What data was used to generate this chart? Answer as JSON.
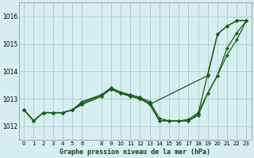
{
  "title": "Graphe pression niveau de la mer (hPa)",
  "background_color": "#d6eef0",
  "grid_color": "#b0cdd0",
  "line_color": "#1a5c1a",
  "xlim": [
    -0.5,
    23.5
  ],
  "ylim": [
    1011.5,
    1016.5
  ],
  "yticks": [
    1012,
    1013,
    1014,
    1015,
    1016
  ],
  "xtick_positions": [
    0,
    1,
    2,
    3,
    4,
    5,
    6,
    8,
    9,
    10,
    11,
    12,
    13,
    14,
    15,
    16,
    17,
    18,
    19,
    20,
    21,
    22,
    23
  ],
  "xtick_labels": [
    "0",
    "1",
    "2",
    "3",
    "4",
    "5",
    "6",
    "8",
    "9",
    "10",
    "11",
    "12",
    "13",
    "14",
    "15",
    "16",
    "17",
    "18",
    "19",
    "20",
    "21",
    "22",
    "23"
  ],
  "series": [
    {
      "x": [
        0,
        1,
        2,
        3,
        4,
        5,
        6,
        8,
        9,
        10,
        11,
        12,
        13,
        19,
        20,
        21,
        22,
        23
      ],
      "y": [
        1012.6,
        1012.2,
        1012.5,
        1012.5,
        1012.5,
        1012.6,
        1012.85,
        1013.15,
        1013.35,
        1013.2,
        1013.15,
        1013.05,
        1012.8,
        1013.85,
        1015.35,
        1015.65,
        1015.85,
        1015.85
      ]
    },
    {
      "x": [
        0,
        1,
        2,
        3,
        4,
        5,
        6,
        8,
        9,
        10,
        11,
        12,
        13,
        14,
        15,
        16,
        17,
        18,
        19,
        20,
        21,
        22,
        23
      ],
      "y": [
        1012.6,
        1012.2,
        1012.5,
        1012.5,
        1012.5,
        1012.6,
        1012.8,
        1013.1,
        1013.35,
        1013.2,
        1013.1,
        1013.0,
        1012.85,
        1012.2,
        1012.2,
        1012.2,
        1012.2,
        1012.4,
        1013.2,
        1013.85,
        1014.85,
        1015.4,
        1015.85
      ]
    },
    {
      "x": [
        0,
        1,
        2,
        3,
        4,
        5,
        6,
        8,
        9,
        10,
        11,
        12,
        13,
        14,
        15,
        16,
        17,
        18,
        19,
        20,
        21,
        22,
        23
      ],
      "y": [
        1012.6,
        1012.2,
        1012.5,
        1012.5,
        1012.5,
        1012.6,
        1012.9,
        1013.15,
        1013.4,
        1013.25,
        1013.15,
        1013.05,
        1012.9,
        1012.3,
        1012.2,
        1012.2,
        1012.25,
        1012.5,
        1013.2,
        1013.85,
        1014.6,
        1015.15,
        1015.85
      ]
    },
    {
      "x": [
        0,
        1,
        2,
        3,
        4,
        5,
        6,
        8,
        9,
        10,
        11,
        12,
        13,
        14,
        15,
        16,
        17,
        18,
        19,
        20,
        21,
        22,
        23
      ],
      "y": [
        1012.6,
        1012.2,
        1012.5,
        1012.5,
        1012.5,
        1012.6,
        1012.8,
        1013.1,
        1013.4,
        1013.2,
        1013.1,
        1013.0,
        1012.8,
        1012.2,
        1012.2,
        1012.2,
        1012.2,
        1012.45,
        1013.9,
        1015.35,
        1015.65,
        1015.85,
        1015.85
      ]
    }
  ]
}
